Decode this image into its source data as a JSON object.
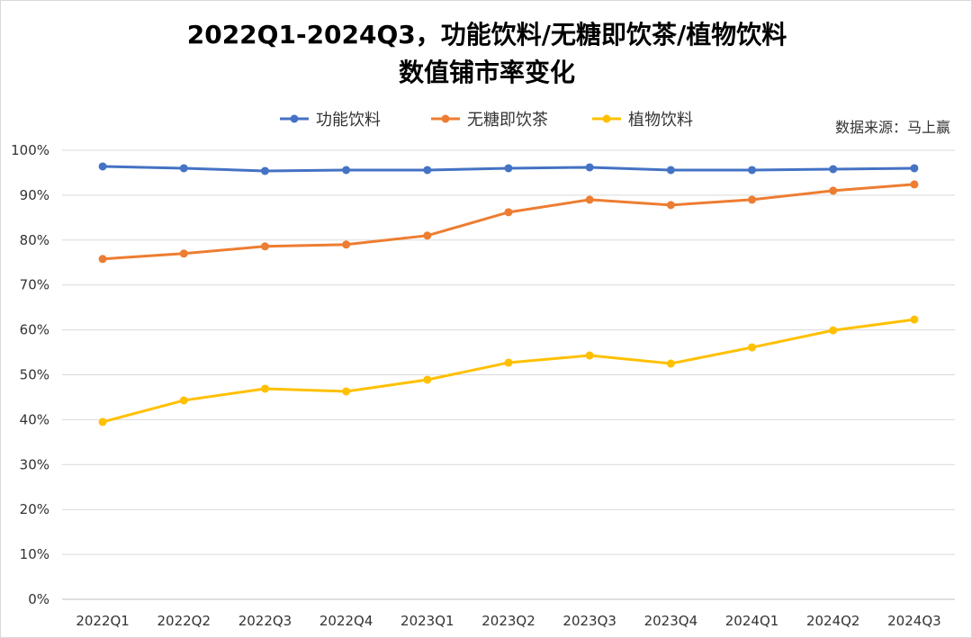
{
  "chart_data": {
    "type": "line",
    "title": "2022Q1-2024Q3，功能饮料/无糖即饮茶/植物饮料",
    "subtitle": "数值铺市率变化",
    "source": "数据来源：马上赢",
    "xlabel": "",
    "ylabel": "",
    "ylim": [
      0,
      100
    ],
    "y_ticks": [
      "0%",
      "10%",
      "20%",
      "30%",
      "40%",
      "50%",
      "60%",
      "70%",
      "80%",
      "90%",
      "100%"
    ],
    "grid": true,
    "legend_position": "top-center",
    "categories": [
      "2022Q1",
      "2022Q2",
      "2022Q3",
      "2022Q4",
      "2023Q1",
      "2023Q2",
      "2023Q3",
      "2023Q4",
      "2024Q1",
      "2024Q2",
      "2024Q3"
    ],
    "series": [
      {
        "name": "功能饮料",
        "color": "#4472C4",
        "values": [
          96.4,
          96.0,
          95.4,
          95.6,
          95.6,
          96.0,
          96.2,
          95.6,
          95.6,
          95.8,
          96.0
        ]
      },
      {
        "name": "无糖即饮茶",
        "color": "#ED7D31",
        "values": [
          75.8,
          77.0,
          78.6,
          79.0,
          81.0,
          86.2,
          89.0,
          87.8,
          89.0,
          91.0,
          92.4
        ]
      },
      {
        "name": "植物饮料",
        "color": "#FFC000",
        "values": [
          39.5,
          44.3,
          46.9,
          46.3,
          48.9,
          52.7,
          54.3,
          52.5,
          56.1,
          59.9,
          62.3
        ]
      }
    ]
  }
}
